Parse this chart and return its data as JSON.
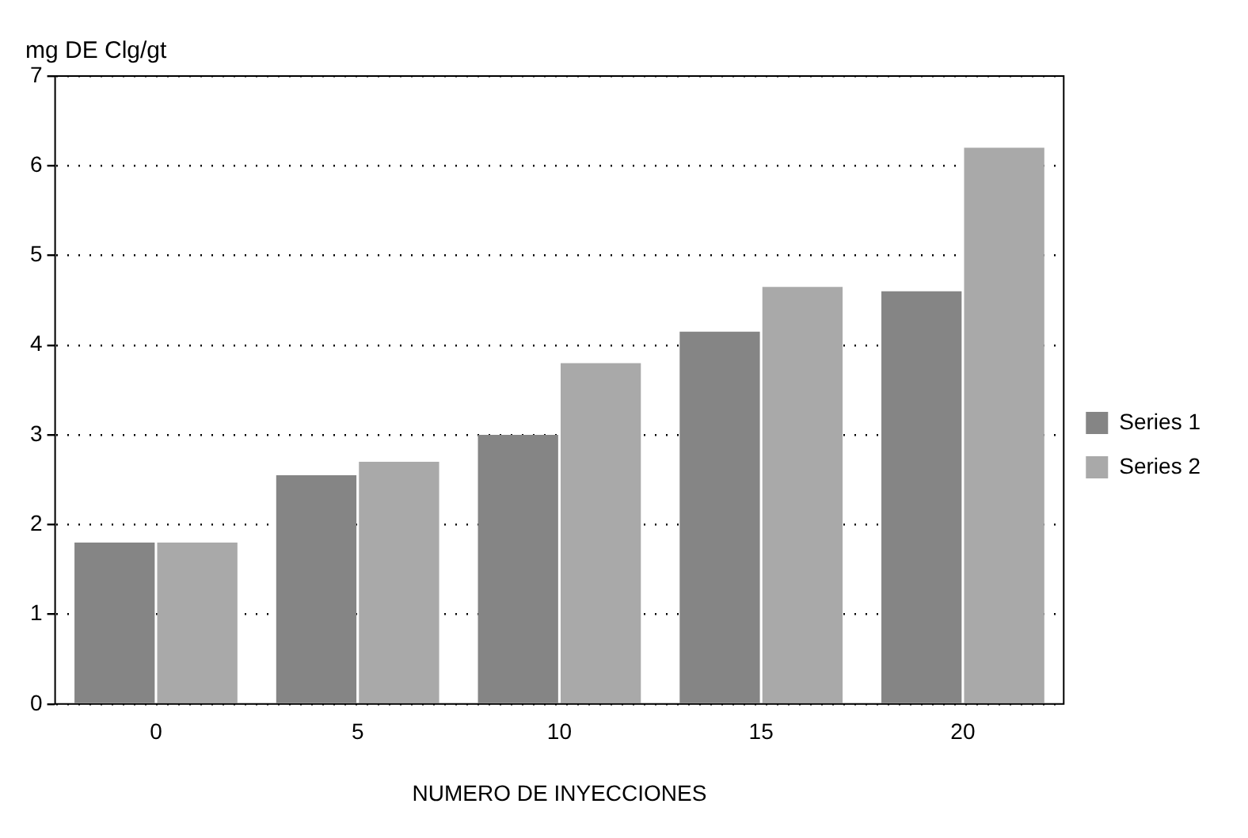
{
  "chart_data": {
    "type": "bar",
    "ylabel": "mg DE Clg/gt",
    "xlabel": "NUMERO DE INYECCIONES",
    "categories": [
      "0",
      "5",
      "10",
      "15",
      "20"
    ],
    "series": [
      {
        "name": "Series 1",
        "color": "#858585",
        "values": [
          1.8,
          2.55,
          3.0,
          4.15,
          4.6
        ]
      },
      {
        "name": "Series 2",
        "color": "#a9a9a9",
        "values": [
          1.8,
          2.7,
          3.8,
          4.65,
          6.2
        ]
      }
    ],
    "ylim": [
      0,
      7
    ],
    "yticks": [
      0,
      1,
      2,
      3,
      4,
      5,
      6,
      7
    ],
    "grid": "y",
    "legend": "right"
  }
}
